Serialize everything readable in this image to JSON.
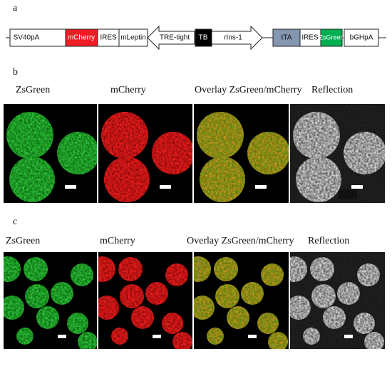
{
  "panel_a": {
    "label": "a",
    "elements": [
      "SV40pA",
      "mCherry",
      "IRES",
      "mLeptin",
      "TRE-tight",
      "TB",
      "rIns-1",
      "tTA",
      "IRES",
      "ZsGreen",
      "bGHpA"
    ]
  },
  "panel_b": {
    "label": "b",
    "captions": [
      "ZsGreen",
      "mCherry",
      "Overlay ZsGreen/mCherry",
      "Reflection"
    ]
  },
  "panel_c": {
    "label": "c",
    "captions": [
      "ZsGreen",
      "mCherry",
      "Overlay ZsGreen/mCherry",
      "Reflection"
    ]
  }
}
